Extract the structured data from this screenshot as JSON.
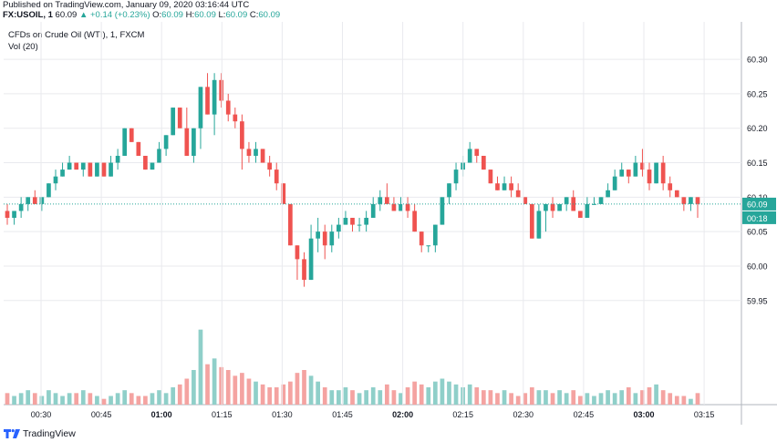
{
  "header": {
    "published": "Published on TradingView.com, January 09, 2020 03:16:44 UTC",
    "symbol": "FX:USOIL, 1",
    "last": "60.09",
    "change": "▲ +0.14 (+0.23%)",
    "o_label": "O:",
    "o": "60.09",
    "h_label": "H:",
    "h": "60.09",
    "l_label": "L:",
    "l": "60.09",
    "c_label": "C:",
    "c": "60.09"
  },
  "legend": {
    "title": "CFDs on Crude Oil (WTI), 1, FXCM",
    "volume": "Vol (20)"
  },
  "footer": {
    "brand": "TradingView"
  },
  "colors": {
    "up": "#26a69a",
    "down": "#ef5350",
    "vol_up": "#8fcfc9",
    "vol_down": "#f4a3a1",
    "grid": "#e9eaee",
    "axis": "#b2b5be",
    "text": "#131722"
  },
  "chart_data": {
    "type": "candlestick",
    "title": "CFDs on Crude Oil (WTI), 1, FXCM",
    "y_ticks": [
      "60.30",
      "60.25",
      "60.20",
      "60.15",
      "60.10",
      "60.05",
      "60.00",
      "59.95"
    ],
    "ylim": [
      59.91,
      60.32
    ],
    "x_ticks": [
      "00:30",
      "00:45",
      "01:00",
      "01:15",
      "01:30",
      "01:45",
      "02:00",
      "02:15",
      "02:30",
      "02:45",
      "03:00",
      "03:15"
    ],
    "last_price": "60.09",
    "countdown": "00:18",
    "candles": [
      {
        "o": 60.08,
        "h": 60.09,
        "l": 60.06,
        "c": 60.07,
        "v": 4
      },
      {
        "o": 60.07,
        "h": 60.08,
        "l": 60.06,
        "c": 60.08,
        "v": 3
      },
      {
        "o": 60.08,
        "h": 60.1,
        "l": 60.07,
        "c": 60.09,
        "v": 4
      },
      {
        "o": 60.09,
        "h": 60.1,
        "l": 60.08,
        "c": 60.1,
        "v": 5
      },
      {
        "o": 60.1,
        "h": 60.11,
        "l": 60.09,
        "c": 60.09,
        "v": 4
      },
      {
        "o": 60.09,
        "h": 60.1,
        "l": 60.08,
        "c": 60.1,
        "v": 3
      },
      {
        "o": 60.1,
        "h": 60.12,
        "l": 60.1,
        "c": 60.12,
        "v": 5
      },
      {
        "o": 60.12,
        "h": 60.14,
        "l": 60.11,
        "c": 60.13,
        "v": 4
      },
      {
        "o": 60.13,
        "h": 60.15,
        "l": 60.13,
        "c": 60.14,
        "v": 3
      },
      {
        "o": 60.14,
        "h": 60.16,
        "l": 60.14,
        "c": 60.15,
        "v": 4
      },
      {
        "o": 60.15,
        "h": 60.15,
        "l": 60.14,
        "c": 60.14,
        "v": 4
      },
      {
        "o": 60.14,
        "h": 60.15,
        "l": 60.13,
        "c": 60.15,
        "v": 5
      },
      {
        "o": 60.15,
        "h": 60.15,
        "l": 60.13,
        "c": 60.13,
        "v": 4
      },
      {
        "o": 60.13,
        "h": 60.15,
        "l": 60.13,
        "c": 60.15,
        "v": 3
      },
      {
        "o": 60.15,
        "h": 60.15,
        "l": 60.13,
        "c": 60.13,
        "v": 2
      },
      {
        "o": 60.13,
        "h": 60.16,
        "l": 60.13,
        "c": 60.15,
        "v": 3
      },
      {
        "o": 60.15,
        "h": 60.17,
        "l": 60.14,
        "c": 60.16,
        "v": 4
      },
      {
        "o": 60.16,
        "h": 60.2,
        "l": 60.16,
        "c": 60.2,
        "v": 5
      },
      {
        "o": 60.2,
        "h": 60.2,
        "l": 60.18,
        "c": 60.18,
        "v": 4
      },
      {
        "o": 60.18,
        "h": 60.18,
        "l": 60.16,
        "c": 60.16,
        "v": 3
      },
      {
        "o": 60.16,
        "h": 60.16,
        "l": 60.14,
        "c": 60.14,
        "v": 3
      },
      {
        "o": 60.14,
        "h": 60.15,
        "l": 60.14,
        "c": 60.15,
        "v": 4
      },
      {
        "o": 60.15,
        "h": 60.18,
        "l": 60.15,
        "c": 60.17,
        "v": 5
      },
      {
        "o": 60.17,
        "h": 60.19,
        "l": 60.16,
        "c": 60.19,
        "v": 4
      },
      {
        "o": 60.19,
        "h": 60.23,
        "l": 60.19,
        "c": 60.23,
        "v": 6
      },
      {
        "o": 60.23,
        "h": 60.23,
        "l": 60.2,
        "c": 60.2,
        "v": 7
      },
      {
        "o": 60.2,
        "h": 60.23,
        "l": 60.16,
        "c": 60.16,
        "v": 9
      },
      {
        "o": 60.16,
        "h": 60.2,
        "l": 60.15,
        "c": 60.2,
        "v": 12
      },
      {
        "o": 60.2,
        "h": 60.26,
        "l": 60.17,
        "c": 60.26,
        "v": 26
      },
      {
        "o": 60.26,
        "h": 60.28,
        "l": 60.22,
        "c": 60.22,
        "v": 14
      },
      {
        "o": 60.22,
        "h": 60.28,
        "l": 60.19,
        "c": 60.27,
        "v": 16
      },
      {
        "o": 60.27,
        "h": 60.28,
        "l": 60.23,
        "c": 60.24,
        "v": 13
      },
      {
        "o": 60.24,
        "h": 60.25,
        "l": 60.21,
        "c": 60.22,
        "v": 12
      },
      {
        "o": 60.22,
        "h": 60.23,
        "l": 60.2,
        "c": 60.21,
        "v": 10
      },
      {
        "o": 60.21,
        "h": 60.22,
        "l": 60.14,
        "c": 60.17,
        "v": 11
      },
      {
        "o": 60.17,
        "h": 60.18,
        "l": 60.15,
        "c": 60.16,
        "v": 9
      },
      {
        "o": 60.16,
        "h": 60.18,
        "l": 60.15,
        "c": 60.17,
        "v": 8
      },
      {
        "o": 60.17,
        "h": 60.17,
        "l": 60.15,
        "c": 60.15,
        "v": 7
      },
      {
        "o": 60.15,
        "h": 60.16,
        "l": 60.13,
        "c": 60.14,
        "v": 6
      },
      {
        "o": 60.14,
        "h": 60.15,
        "l": 60.11,
        "c": 60.12,
        "v": 6
      },
      {
        "o": 60.12,
        "h": 60.12,
        "l": 60.09,
        "c": 60.09,
        "v": 7
      },
      {
        "o": 60.09,
        "h": 60.09,
        "l": 60.03,
        "c": 60.03,
        "v": 8
      },
      {
        "o": 60.03,
        "h": 60.03,
        "l": 59.98,
        "c": 60.01,
        "v": 11
      },
      {
        "o": 60.01,
        "h": 60.02,
        "l": 59.97,
        "c": 59.98,
        "v": 12
      },
      {
        "o": 59.98,
        "h": 60.06,
        "l": 59.98,
        "c": 60.04,
        "v": 10
      },
      {
        "o": 60.04,
        "h": 60.07,
        "l": 60.02,
        "c": 60.05,
        "v": 8
      },
      {
        "o": 60.05,
        "h": 60.06,
        "l": 60.01,
        "c": 60.03,
        "v": 6
      },
      {
        "o": 60.03,
        "h": 60.06,
        "l": 60.02,
        "c": 60.05,
        "v": 5
      },
      {
        "o": 60.05,
        "h": 60.07,
        "l": 60.04,
        "c": 60.06,
        "v": 5
      },
      {
        "o": 60.06,
        "h": 60.08,
        "l": 60.06,
        "c": 60.07,
        "v": 6
      },
      {
        "o": 60.07,
        "h": 60.07,
        "l": 60.05,
        "c": 60.06,
        "v": 5
      },
      {
        "o": 60.06,
        "h": 60.07,
        "l": 60.05,
        "c": 60.06,
        "v": 4
      },
      {
        "o": 60.06,
        "h": 60.08,
        "l": 60.05,
        "c": 60.07,
        "v": 5
      },
      {
        "o": 60.07,
        "h": 60.1,
        "l": 60.07,
        "c": 60.09,
        "v": 6
      },
      {
        "o": 60.09,
        "h": 60.11,
        "l": 60.08,
        "c": 60.1,
        "v": 5
      },
      {
        "o": 60.1,
        "h": 60.12,
        "l": 60.09,
        "c": 60.09,
        "v": 7
      },
      {
        "o": 60.09,
        "h": 60.1,
        "l": 60.08,
        "c": 60.08,
        "v": 5
      },
      {
        "o": 60.08,
        "h": 60.1,
        "l": 60.08,
        "c": 60.09,
        "v": 4
      },
      {
        "o": 60.09,
        "h": 60.1,
        "l": 60.07,
        "c": 60.08,
        "v": 6
      },
      {
        "o": 60.08,
        "h": 60.09,
        "l": 60.05,
        "c": 60.05,
        "v": 8
      },
      {
        "o": 60.05,
        "h": 60.05,
        "l": 60.02,
        "c": 60.03,
        "v": 7
      },
      {
        "o": 60.03,
        "h": 60.03,
        "l": 60.02,
        "c": 60.03,
        "v": 6
      },
      {
        "o": 60.03,
        "h": 60.06,
        "l": 60.02,
        "c": 60.06,
        "v": 8
      },
      {
        "o": 60.06,
        "h": 60.1,
        "l": 60.06,
        "c": 60.1,
        "v": 9
      },
      {
        "o": 60.1,
        "h": 60.12,
        "l": 60.09,
        "c": 60.12,
        "v": 8
      },
      {
        "o": 60.12,
        "h": 60.15,
        "l": 60.11,
        "c": 60.14,
        "v": 7
      },
      {
        "o": 60.14,
        "h": 60.16,
        "l": 60.13,
        "c": 60.15,
        "v": 6
      },
      {
        "o": 60.15,
        "h": 60.18,
        "l": 60.15,
        "c": 60.17,
        "v": 7
      },
      {
        "o": 60.17,
        "h": 60.17,
        "l": 60.15,
        "c": 60.16,
        "v": 6
      },
      {
        "o": 60.16,
        "h": 60.16,
        "l": 60.14,
        "c": 60.14,
        "v": 5
      },
      {
        "o": 60.14,
        "h": 60.14,
        "l": 60.12,
        "c": 60.12,
        "v": 5
      },
      {
        "o": 60.12,
        "h": 60.13,
        "l": 60.11,
        "c": 60.11,
        "v": 4
      },
      {
        "o": 60.11,
        "h": 60.13,
        "l": 60.11,
        "c": 60.12,
        "v": 5
      },
      {
        "o": 60.12,
        "h": 60.13,
        "l": 60.1,
        "c": 60.11,
        "v": 4
      },
      {
        "o": 60.11,
        "h": 60.12,
        "l": 60.1,
        "c": 60.1,
        "v": 3
      },
      {
        "o": 60.1,
        "h": 60.1,
        "l": 60.09,
        "c": 60.09,
        "v": 4
      },
      {
        "o": 60.09,
        "h": 60.09,
        "l": 60.04,
        "c": 60.04,
        "v": 6
      },
      {
        "o": 60.04,
        "h": 60.09,
        "l": 60.04,
        "c": 60.08,
        "v": 5
      },
      {
        "o": 60.08,
        "h": 60.09,
        "l": 60.05,
        "c": 60.09,
        "v": 5
      },
      {
        "o": 60.09,
        "h": 60.1,
        "l": 60.07,
        "c": 60.08,
        "v": 4
      },
      {
        "o": 60.08,
        "h": 60.09,
        "l": 60.08,
        "c": 60.09,
        "v": 5
      },
      {
        "o": 60.09,
        "h": 60.1,
        "l": 60.08,
        "c": 60.1,
        "v": 4
      },
      {
        "o": 60.1,
        "h": 60.11,
        "l": 60.08,
        "c": 60.08,
        "v": 5
      },
      {
        "o": 60.08,
        "h": 60.08,
        "l": 60.07,
        "c": 60.07,
        "v": 3
      },
      {
        "o": 60.07,
        "h": 60.1,
        "l": 60.07,
        "c": 60.09,
        "v": 4
      },
      {
        "o": 60.09,
        "h": 60.1,
        "l": 60.09,
        "c": 60.09,
        "v": 3
      },
      {
        "o": 60.09,
        "h": 60.1,
        "l": 60.09,
        "c": 60.1,
        "v": 4
      },
      {
        "o": 60.1,
        "h": 60.12,
        "l": 60.1,
        "c": 60.11,
        "v": 5
      },
      {
        "o": 60.11,
        "h": 60.14,
        "l": 60.11,
        "c": 60.13,
        "v": 4
      },
      {
        "o": 60.13,
        "h": 60.15,
        "l": 60.13,
        "c": 60.14,
        "v": 5
      },
      {
        "o": 60.14,
        "h": 60.14,
        "l": 60.12,
        "c": 60.13,
        "v": 6
      },
      {
        "o": 60.13,
        "h": 60.16,
        "l": 60.13,
        "c": 60.15,
        "v": 4
      },
      {
        "o": 60.15,
        "h": 60.17,
        "l": 60.13,
        "c": 60.14,
        "v": 5
      },
      {
        "o": 60.14,
        "h": 60.15,
        "l": 60.11,
        "c": 60.12,
        "v": 6
      },
      {
        "o": 60.12,
        "h": 60.15,
        "l": 60.12,
        "c": 60.15,
        "v": 7
      },
      {
        "o": 60.15,
        "h": 60.16,
        "l": 60.11,
        "c": 60.12,
        "v": 5
      },
      {
        "o": 60.12,
        "h": 60.13,
        "l": 60.1,
        "c": 60.11,
        "v": 4
      },
      {
        "o": 60.11,
        "h": 60.11,
        "l": 60.1,
        "c": 60.1,
        "v": 3
      },
      {
        "o": 60.1,
        "h": 60.1,
        "l": 60.08,
        "c": 60.09,
        "v": 3
      },
      {
        "o": 60.09,
        "h": 60.1,
        "l": 60.08,
        "c": 60.1,
        "v": 2
      },
      {
        "o": 60.1,
        "h": 60.1,
        "l": 60.07,
        "c": 60.09,
        "v": 4
      }
    ],
    "volume_label": "Vol (20)"
  }
}
